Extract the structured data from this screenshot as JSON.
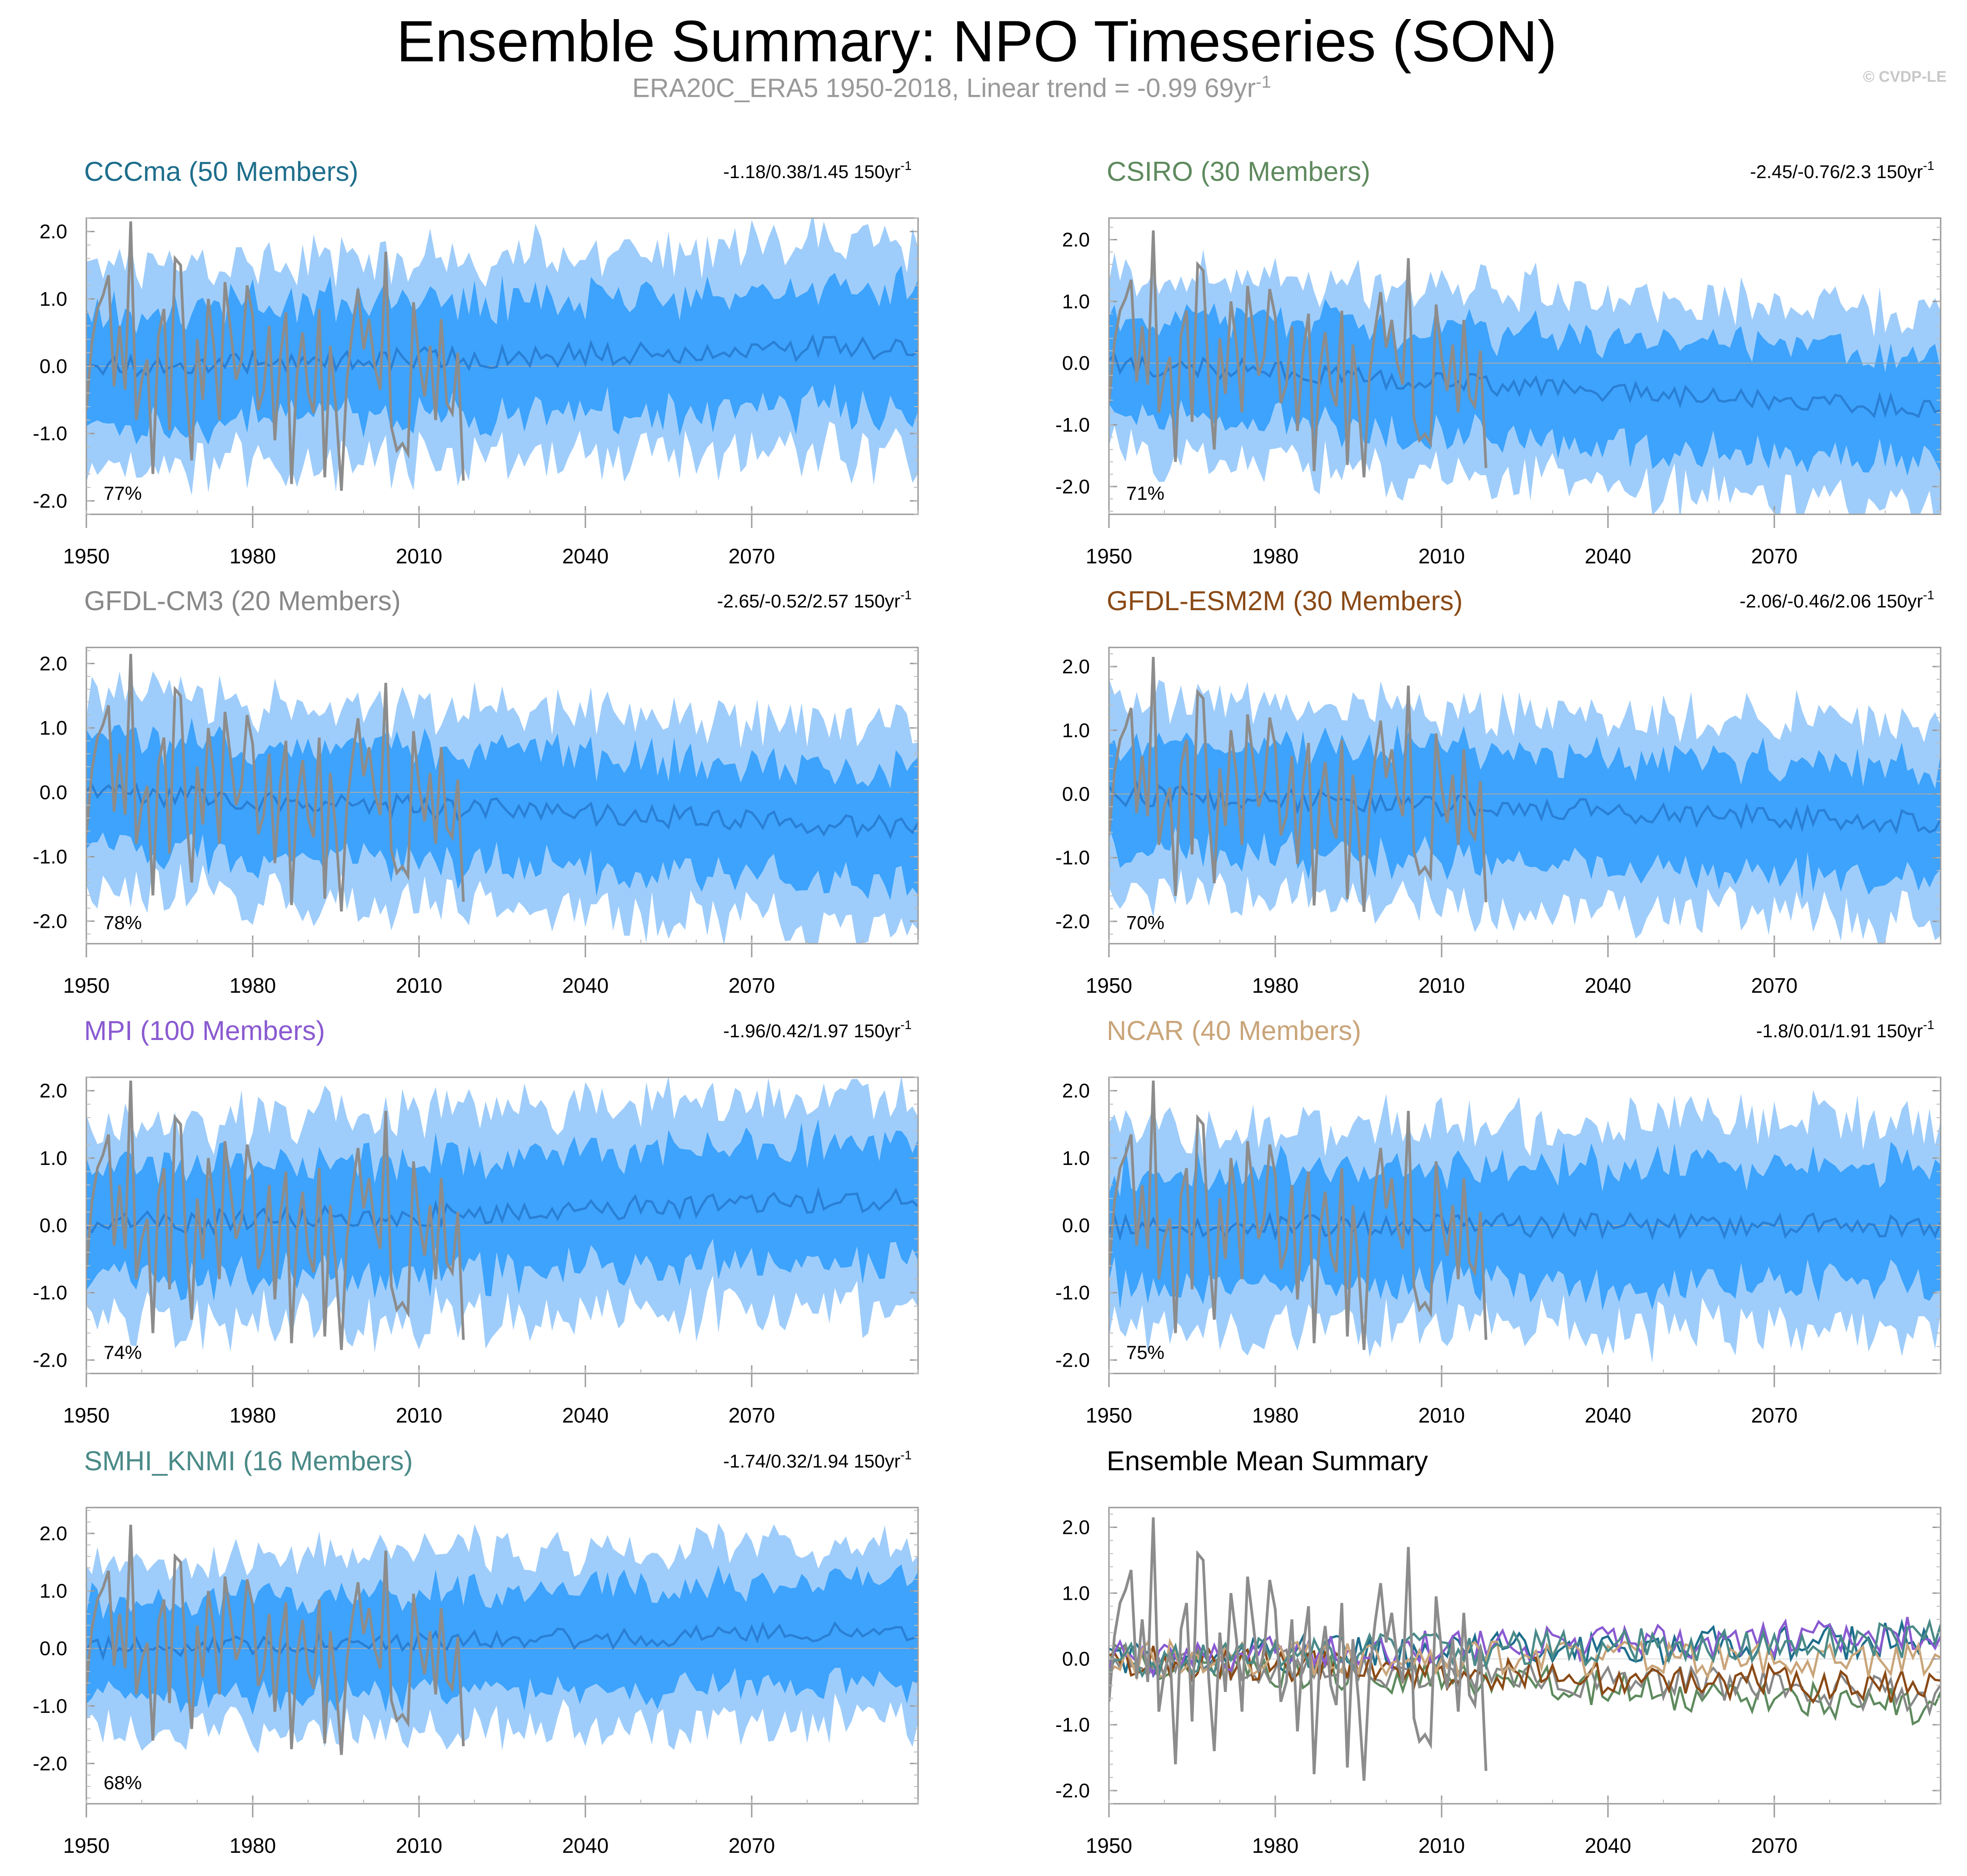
{
  "title": "Ensemble Summary: NPO Timeseries (SON)",
  "subtitle": {
    "text": "ERA20C_ERA5 1950-2018, Linear trend = -0.99 69yr",
    "superscript": "-1"
  },
  "watermark": "© CVDP-LE",
  "colors": {
    "outer_band": "#9fcdfb",
    "inner_band": "#3da3fc",
    "mean_line": "#2a7fd4",
    "observations": "#8c8c8c",
    "zero_line": "#aaaaaa"
  },
  "chart_data": [
    {
      "type": "area",
      "name": "CCCma",
      "title": "CCCma (50 Members)",
      "title_color": "#1e6e8c",
      "trend": "-1.18/0.38/1.45 150yr",
      "trend_sup": "-1",
      "percent": "77%",
      "mean_trend": 0.3,
      "spread": 1.0,
      "seed": 11,
      "xlim": [
        1950,
        2100
      ],
      "ylim": [
        -2.2,
        2.2
      ],
      "xticks": [
        "1950",
        "1980",
        "2010",
        "2040",
        "2070"
      ],
      "yticks": [
        "2.0",
        "1.0",
        "0.0",
        "-1.0",
        "-2.0"
      ]
    },
    {
      "type": "area",
      "name": "CSIRO",
      "title": "CSIRO (30 Members)",
      "title_color": "#5e8a5e",
      "trend": "-2.45/-0.76/2.3 150yr",
      "trend_sup": "-1",
      "percent": "71%",
      "mean_trend": -0.75,
      "spread": 1.0,
      "seed": 22,
      "xlim": [
        1950,
        2100
      ],
      "ylim": [
        -2.45,
        2.35
      ],
      "xticks": [
        "1950",
        "1980",
        "2010",
        "2040",
        "2070"
      ],
      "yticks": [
        "2.0",
        "1.0",
        "0.0",
        "-1.0",
        "-2.0"
      ]
    },
    {
      "type": "area",
      "name": "GFDL-CM3",
      "title": "GFDL-CM3 (20 Members)",
      "title_color": "#888888",
      "trend": "-2.65/-0.52/2.57 150yr",
      "trend_sup": "-1",
      "percent": "78%",
      "mean_trend": -0.55,
      "spread": 1.0,
      "seed": 33,
      "xlim": [
        1950,
        2100
      ],
      "ylim": [
        -2.35,
        2.25
      ],
      "xticks": [
        "1950",
        "1980",
        "2010",
        "2040",
        "2070"
      ],
      "yticks": [
        "2.0",
        "1.0",
        "0.0",
        "-1.0",
        "-2.0"
      ]
    },
    {
      "type": "area",
      "name": "GFDL-ESM2M",
      "title": "GFDL-ESM2M (30 Members)",
      "title_color": "#8a4a16",
      "trend": "-2.06/-0.46/2.06 150yr",
      "trend_sup": "-1",
      "percent": "70%",
      "mean_trend": -0.45,
      "spread": 1.0,
      "seed": 44,
      "xlim": [
        1950,
        2100
      ],
      "ylim": [
        -2.35,
        2.3
      ],
      "xticks": [
        "1950",
        "1980",
        "2010",
        "2040",
        "2070"
      ],
      "yticks": [
        "2.0",
        "1.0",
        "0.0",
        "-1.0",
        "-2.0"
      ]
    },
    {
      "type": "area",
      "name": "MPI",
      "title": "MPI (100 Members)",
      "title_color": "#8a5ad1",
      "trend": "-1.96/0.42/1.97 150yr",
      "trend_sup": "-1",
      "percent": "74%",
      "mean_trend": 0.4,
      "spread": 1.0,
      "seed": 55,
      "xlim": [
        1950,
        2100
      ],
      "ylim": [
        -2.2,
        2.2
      ],
      "xticks": [
        "1950",
        "1980",
        "2010",
        "2040",
        "2070"
      ],
      "yticks": [
        "2.0",
        "1.0",
        "0.0",
        "-1.0",
        "-2.0"
      ]
    },
    {
      "type": "area",
      "name": "NCAR",
      "title": "NCAR (40 Members)",
      "title_color": "#c9a57a",
      "trend": "-1.8/0.01/1.91 150yr",
      "trend_sup": "-1",
      "percent": "75%",
      "mean_trend": 0.0,
      "spread": 1.0,
      "seed": 66,
      "xlim": [
        1950,
        2100
      ],
      "ylim": [
        -2.2,
        2.2
      ],
      "xticks": [
        "1950",
        "1980",
        "2010",
        "2040",
        "2070"
      ],
      "yticks": [
        "2.0",
        "1.0",
        "0.0",
        "-1.0",
        "-2.0"
      ]
    },
    {
      "type": "area",
      "name": "SMHI_KNMI",
      "title": "SMHI_KNMI (16 Members)",
      "title_color": "#4a8a88",
      "trend": "-1.74/0.32/1.94 150yr",
      "trend_sup": "-1",
      "percent": "68%",
      "mean_trend": 0.3,
      "spread": 1.0,
      "seed": 77,
      "xlim": [
        1950,
        2100
      ],
      "ylim": [
        -2.7,
        2.45
      ],
      "xticks": [
        "1950",
        "1980",
        "2010",
        "2040",
        "2070"
      ],
      "yticks": [
        "2.0",
        "1.0",
        "0.0",
        "-1.0",
        "-2.0"
      ]
    },
    {
      "type": "line",
      "name": "Ensemble Mean Summary",
      "title": "Ensemble Mean Summary",
      "title_color": "#000000",
      "xlim": [
        1950,
        2100
      ],
      "ylim": [
        -2.2,
        2.3
      ],
      "xticks": [
        "1950",
        "1980",
        "2010",
        "2040",
        "2070"
      ],
      "yticks": [
        "2.0",
        "1.0",
        "0.0",
        "-1.0",
        "-2.0"
      ],
      "series": [
        {
          "name": "CCCma",
          "color": "#1e6e8c",
          "trend": 0.3,
          "seed": 11
        },
        {
          "name": "CSIRO",
          "color": "#5e8a5e",
          "trend": -0.75,
          "seed": 22
        },
        {
          "name": "GFDL-CM3",
          "color": "#888888",
          "trend": -0.55,
          "seed": 33
        },
        {
          "name": "GFDL-ESM2M",
          "color": "#8a4a16",
          "trend": -0.45,
          "seed": 44
        },
        {
          "name": "MPI",
          "color": "#8a5ad1",
          "trend": 0.4,
          "seed": 55
        },
        {
          "name": "NCAR",
          "color": "#c9a57a",
          "trend": 0.0,
          "seed": 66
        },
        {
          "name": "SMHI_KNMI",
          "color": "#4a8a88",
          "trend": 0.3,
          "seed": 77
        }
      ]
    }
  ],
  "observations": {
    "name": "ERA20C_ERA5",
    "years": [
      1950,
      2018
    ],
    "values": [
      -0.65,
      0.35,
      0.85,
      1.05,
      1.35,
      -0.3,
      0.6,
      -0.35,
      2.15,
      -0.8,
      -0.2,
      0.1,
      -1.6,
      0.45,
      0.85,
      -0.95,
      1.6,
      1.5,
      -0.3,
      -1.4,
      0.4,
      -0.5,
      1.0,
      0.3,
      -0.8,
      1.25,
      0.55,
      -0.2,
      0.1,
      1.2,
      0.75,
      -0.65,
      -0.35,
      0.6,
      -1.1,
      0.15,
      0.8,
      -1.75,
      -0.1,
      0.5,
      -0.4,
      -0.7,
      0.85,
      -1.65,
      0.3,
      -0.6,
      -1.85,
      -0.2,
      0.55,
      1.15,
      0.25,
      0.7,
      0.0,
      -0.35,
      1.7,
      -0.9,
      -1.25,
      -1.15,
      -1.3,
      0.95,
      0.1,
      -0.45,
      0.3,
      -0.8,
      0.7,
      -0.55,
      -0.7,
      0.2,
      -1.7
    ]
  }
}
